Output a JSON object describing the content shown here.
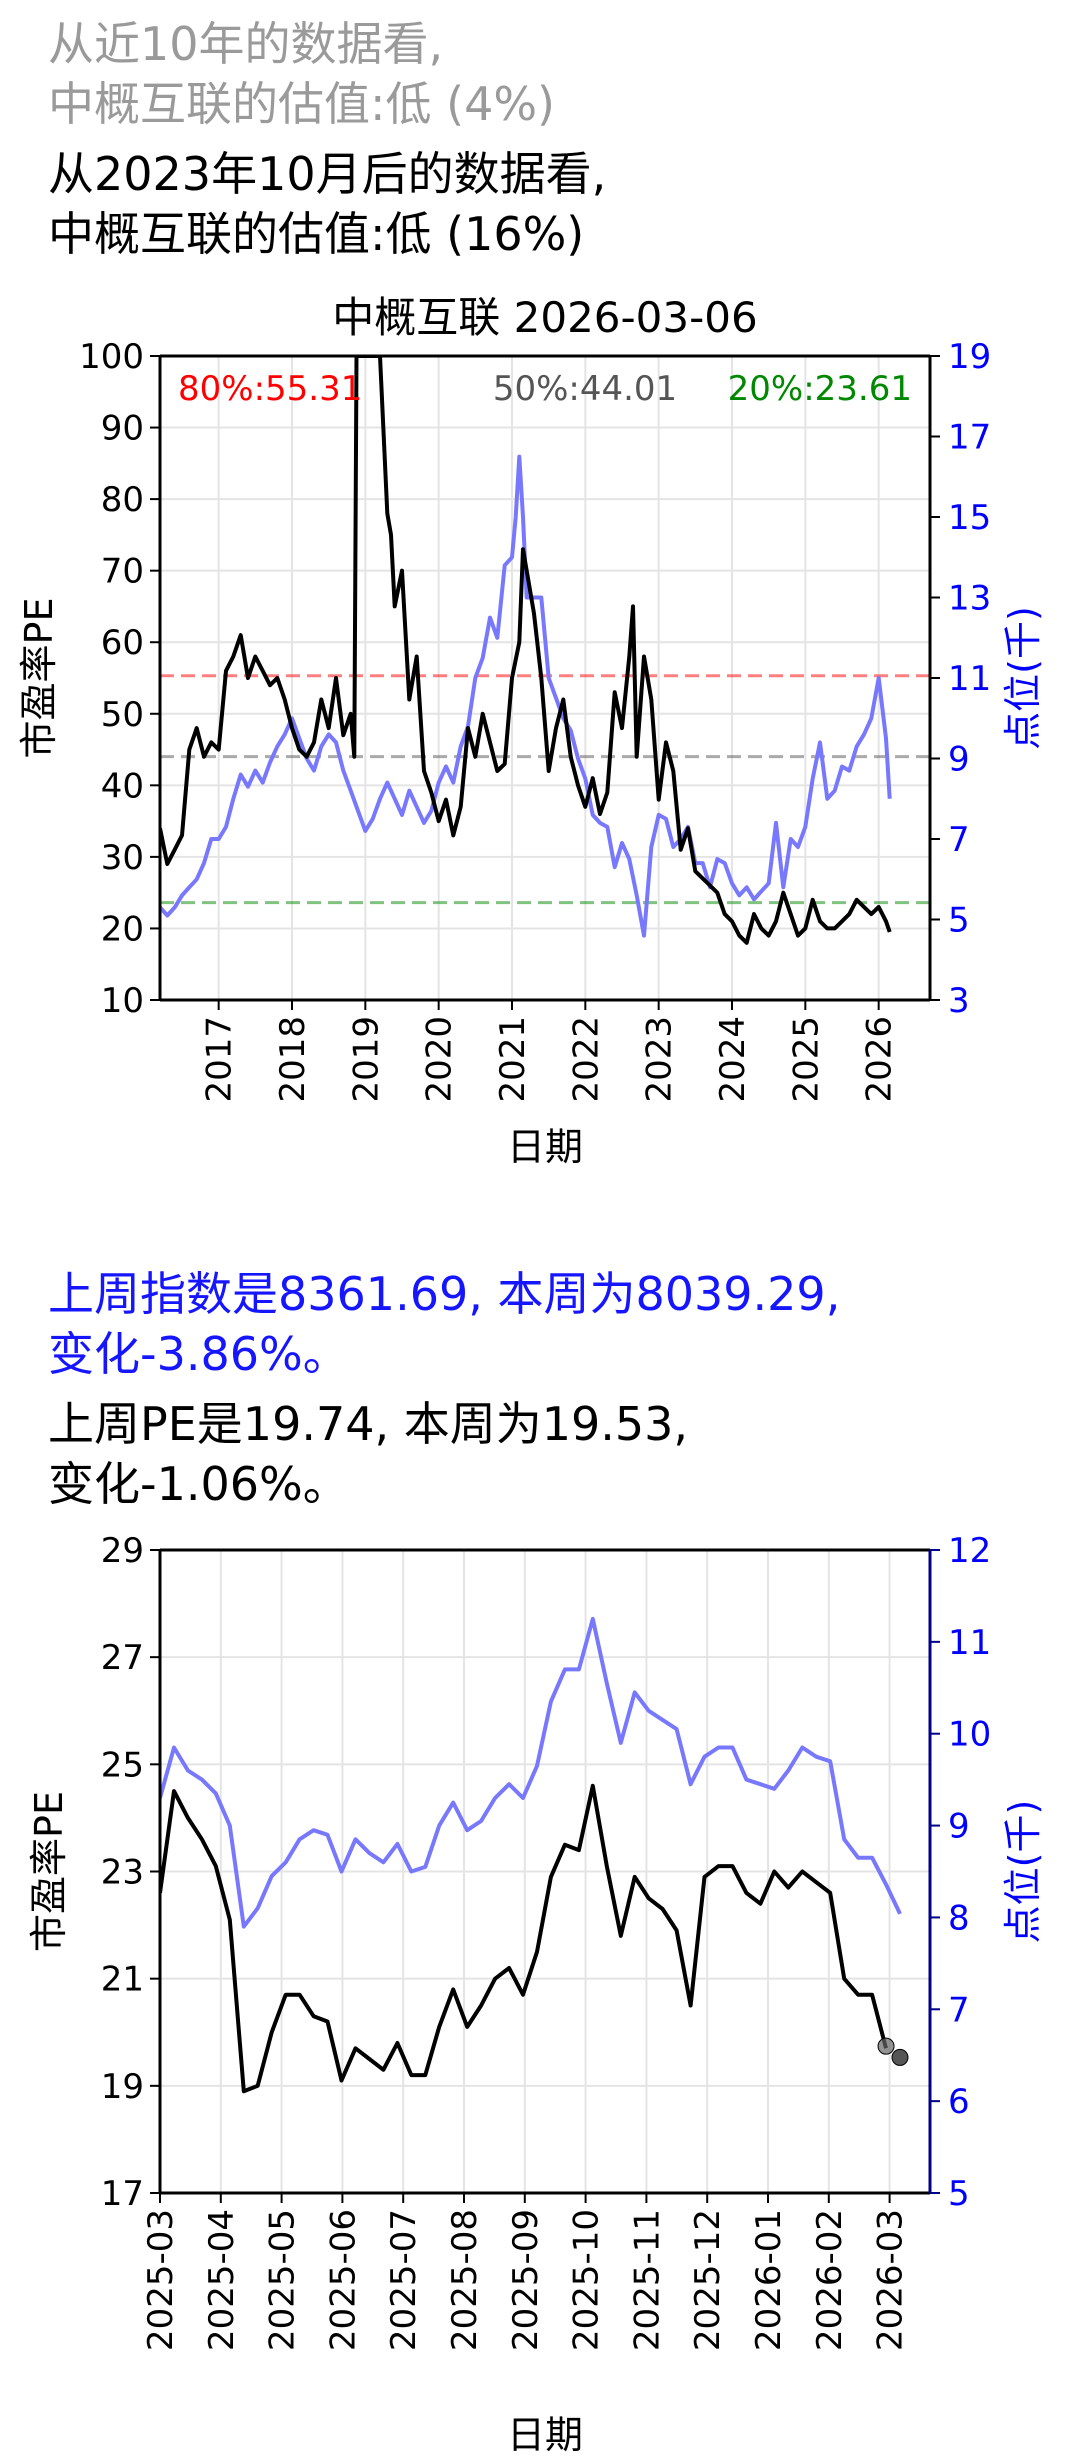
{
  "header": {
    "line1": "从近10年的数据看,",
    "line2": "中概互联的估值:低 (4%)",
    "line3": "从2023年10月后的数据看,",
    "line4": "中概互联的估值:低 (16%)"
  },
  "summary": {
    "index_line1": "上周指数是8361.69, 本周为8039.29,",
    "index_line2": "变化-3.86%。",
    "pe_line1": "上周PE是19.74, 本周为19.53,",
    "pe_line2": "变化-1.06%。"
  },
  "colors": {
    "pe": "#000000",
    "index": "#7878ff",
    "p80": "#ff0000",
    "p50": "#555555",
    "p20": "#008800",
    "right_axis": "#0000ff"
  },
  "chart_data": [
    {
      "type": "line",
      "title": "中概互联 2026-03-06",
      "xlabel": "日期",
      "ylabel": "市盈率PE",
      "y2label": "点位(千)",
      "xlim": [
        2016.2,
        2026.7
      ],
      "ylim": [
        10,
        100
      ],
      "y2lim": [
        3,
        19
      ],
      "x_ticks": [
        "2017",
        "2018",
        "2019",
        "2020",
        "2021",
        "2022",
        "2023",
        "2024",
        "2025",
        "2026"
      ],
      "y_ticks": [
        "10",
        "20",
        "30",
        "40",
        "50",
        "60",
        "70",
        "80",
        "90",
        "100"
      ],
      "y2_ticks": [
        "3",
        "5",
        "7",
        "9",
        "11",
        "13",
        "15",
        "17",
        "19"
      ],
      "grid": true,
      "percentile_lines": [
        {
          "label": "80%:55.31",
          "value": 55.31,
          "color": "#ff0000"
        },
        {
          "label": "50%:44.01",
          "value": 44.01,
          "color": "#555555"
        },
        {
          "label": "20%:23.61",
          "value": 23.61,
          "color": "#008800"
        }
      ],
      "series": [
        {
          "name": "市盈率PE",
          "axis": "left",
          "color": "#000000",
          "x": [
            2016.2,
            2016.3,
            2016.4,
            2016.5,
            2016.6,
            2016.7,
            2016.8,
            2016.9,
            2017.0,
            2017.1,
            2017.2,
            2017.3,
            2017.4,
            2017.5,
            2017.6,
            2017.7,
            2017.8,
            2017.9,
            2018.0,
            2018.1,
            2018.2,
            2018.3,
            2018.4,
            2018.5,
            2018.6,
            2018.7,
            2018.8,
            2018.85,
            2018.88,
            2018.92,
            2019.0,
            2019.1,
            2019.2,
            2019.3,
            2019.35,
            2019.4,
            2019.5,
            2019.6,
            2019.7,
            2019.8,
            2019.9,
            2020.0,
            2020.1,
            2020.2,
            2020.3,
            2020.4,
            2020.5,
            2020.6,
            2020.7,
            2020.8,
            2020.9,
            2021.0,
            2021.1,
            2021.15,
            2021.2,
            2021.3,
            2021.4,
            2021.5,
            2021.6,
            2021.7,
            2021.8,
            2021.9,
            2022.0,
            2022.1,
            2022.2,
            2022.3,
            2022.4,
            2022.5,
            2022.6,
            2022.65,
            2022.7,
            2022.8,
            2022.9,
            2023.0,
            2023.1,
            2023.2,
            2023.3,
            2023.4,
            2023.5,
            2023.6,
            2023.7,
            2023.8,
            2023.9,
            2024.0,
            2024.1,
            2024.2,
            2024.3,
            2024.4,
            2024.5,
            2024.6,
            2024.7,
            2024.8,
            2024.9,
            2025.0,
            2025.1,
            2025.2,
            2025.3,
            2025.4,
            2025.5,
            2025.6,
            2025.7,
            2025.8,
            2025.9,
            2026.0,
            2026.1,
            2026.15
          ],
          "y": [
            34,
            29,
            31,
            33,
            45,
            48,
            44,
            46,
            45,
            56,
            58,
            61,
            55,
            58,
            56,
            54,
            55,
            52,
            48,
            45,
            44,
            46,
            52,
            48,
            55,
            47,
            50,
            44,
            100,
            100,
            100,
            100,
            100,
            78,
            75,
            65,
            70,
            52,
            58,
            42,
            39,
            35,
            38,
            33,
            37,
            48,
            44,
            50,
            46,
            42,
            43,
            55,
            60,
            73,
            70,
            64,
            55,
            42,
            48,
            52,
            44,
            40,
            37,
            41,
            36,
            39,
            53,
            48,
            58,
            65,
            44,
            58,
            52,
            38,
            46,
            42,
            31,
            34,
            28,
            27,
            26,
            25,
            22,
            21,
            19,
            18,
            22,
            20,
            19,
            21,
            25,
            22,
            19,
            20,
            24,
            21,
            20,
            20,
            21,
            22,
            24,
            23,
            22,
            23,
            21,
            19.5
          ]
        },
        {
          "name": "点位(千)",
          "axis": "right",
          "color": "#7878ff",
          "x": [
            2016.2,
            2016.3,
            2016.4,
            2016.5,
            2016.6,
            2016.7,
            2016.8,
            2016.9,
            2017.0,
            2017.1,
            2017.2,
            2017.3,
            2017.4,
            2017.5,
            2017.6,
            2017.7,
            2017.8,
            2017.9,
            2018.0,
            2018.1,
            2018.2,
            2018.3,
            2018.4,
            2018.5,
            2018.6,
            2018.7,
            2018.8,
            2018.9,
            2019.0,
            2019.1,
            2019.2,
            2019.3,
            2019.4,
            2019.5,
            2019.6,
            2019.7,
            2019.8,
            2019.9,
            2020.0,
            2020.1,
            2020.2,
            2020.3,
            2020.4,
            2020.5,
            2020.6,
            2020.7,
            2020.8,
            2020.9,
            2021.0,
            2021.05,
            2021.1,
            2021.15,
            2021.2,
            2021.3,
            2021.4,
            2021.5,
            2021.6,
            2021.7,
            2021.8,
            2021.9,
            2022.0,
            2022.1,
            2022.2,
            2022.3,
            2022.4,
            2022.5,
            2022.6,
            2022.7,
            2022.8,
            2022.9,
            2023.0,
            2023.1,
            2023.2,
            2023.3,
            2023.4,
            2023.5,
            2023.6,
            2023.7,
            2023.8,
            2023.9,
            2024.0,
            2024.1,
            2024.2,
            2024.3,
            2024.4,
            2024.5,
            2024.6,
            2024.7,
            2024.8,
            2024.9,
            2025.0,
            2025.1,
            2025.2,
            2025.3,
            2025.4,
            2025.5,
            2025.6,
            2025.7,
            2025.8,
            2025.9,
            2026.0,
            2026.1,
            2026.15
          ],
          "y": [
            5.3,
            5.1,
            5.3,
            5.6,
            5.8,
            6.0,
            6.4,
            7.0,
            7.0,
            7.3,
            8.0,
            8.6,
            8.3,
            8.7,
            8.4,
            8.9,
            9.3,
            9.6,
            10.0,
            9.5,
            9.0,
            8.7,
            9.3,
            9.6,
            9.4,
            8.7,
            8.2,
            7.7,
            7.2,
            7.5,
            8.0,
            8.4,
            8.0,
            7.6,
            8.2,
            7.8,
            7.4,
            7.7,
            8.4,
            8.8,
            8.4,
            9.3,
            9.8,
            11.0,
            11.5,
            12.5,
            12.0,
            13.8,
            14.0,
            15.0,
            16.5,
            15.0,
            13.0,
            13.0,
            13.0,
            11.0,
            10.5,
            10.0,
            9.7,
            9.0,
            8.5,
            7.6,
            7.4,
            7.3,
            6.3,
            6.9,
            6.5,
            5.6,
            4.6,
            6.8,
            7.6,
            7.5,
            6.8,
            7.0,
            7.3,
            6.4,
            6.4,
            5.8,
            6.5,
            6.4,
            5.9,
            5.6,
            5.8,
            5.5,
            5.7,
            5.9,
            7.4,
            5.8,
            7.0,
            6.8,
            7.3,
            8.5,
            9.4,
            8.0,
            8.2,
            8.8,
            8.7,
            9.3,
            9.6,
            10.0,
            11.0,
            9.5,
            8.0
          ]
        }
      ]
    },
    {
      "type": "line",
      "title": "",
      "xlabel": "日期",
      "ylabel": "市盈率PE",
      "y2label": "点位(千)",
      "ylim": [
        17,
        29
      ],
      "y2lim": [
        5,
        12
      ],
      "x_ticks": [
        "2025-03",
        "2025-04",
        "2025-05",
        "2025-06",
        "2025-07",
        "2025-08",
        "2025-09",
        "2025-10",
        "2025-11",
        "2025-12",
        "2026-01",
        "2026-02",
        "2026-03"
      ],
      "y_ticks": [
        "17",
        "19",
        "21",
        "23",
        "25",
        "27",
        "29"
      ],
      "y2_ticks": [
        "5",
        "6",
        "7",
        "8",
        "9",
        "10",
        "11",
        "12"
      ],
      "grid": true,
      "series": [
        {
          "name": "市盈率PE",
          "axis": "left",
          "color": "#000000",
          "x": [
            0,
            1,
            2,
            3,
            4,
            5,
            6,
            7,
            8,
            9,
            10,
            11,
            12,
            13,
            14,
            15,
            16,
            17,
            18,
            19,
            20,
            21,
            22,
            23,
            24,
            25,
            26,
            27,
            28,
            29,
            30,
            31,
            32,
            33,
            34,
            35,
            36,
            37,
            38,
            39,
            40,
            41,
            42,
            43,
            44,
            45,
            46,
            47,
            48,
            49,
            50,
            51,
            52
          ],
          "y": [
            22.6,
            24.5,
            24.0,
            23.6,
            23.1,
            22.1,
            18.9,
            19.0,
            20.0,
            20.7,
            20.7,
            20.3,
            20.2,
            19.1,
            19.7,
            19.5,
            19.3,
            19.8,
            19.2,
            19.2,
            20.1,
            20.8,
            20.1,
            20.5,
            21.0,
            21.2,
            20.7,
            21.5,
            22.9,
            23.5,
            23.4,
            24.6,
            23.1,
            21.8,
            22.9,
            22.5,
            22.3,
            21.9,
            20.5,
            22.9,
            23.1,
            23.1,
            22.6,
            22.4,
            23.0,
            22.7,
            23.0,
            22.8,
            22.6,
            21.0,
            20.7,
            20.7,
            19.7
          ],
          "highlight": [
            {
              "x": 52,
              "y": 19.74
            },
            {
              "x": 53,
              "y": 19.53
            }
          ]
        },
        {
          "name": "点位(千)",
          "axis": "right",
          "color": "#7878ff",
          "x": [
            0,
            1,
            2,
            3,
            4,
            5,
            6,
            7,
            8,
            9,
            10,
            11,
            12,
            13,
            14,
            15,
            16,
            17,
            18,
            19,
            20,
            21,
            22,
            23,
            24,
            25,
            26,
            27,
            28,
            29,
            30,
            31,
            32,
            33,
            34,
            35,
            36,
            37,
            38,
            39,
            40,
            41,
            42,
            43,
            44,
            45,
            46,
            47,
            48,
            49,
            50,
            51,
            52,
            53
          ],
          "y": [
            9.3,
            9.85,
            9.6,
            9.5,
            9.35,
            9.0,
            7.9,
            8.1,
            8.45,
            8.6,
            8.85,
            8.95,
            8.9,
            8.5,
            8.85,
            8.7,
            8.6,
            8.8,
            8.5,
            8.55,
            9.0,
            9.25,
            8.95,
            9.05,
            9.3,
            9.45,
            9.3,
            9.65,
            10.35,
            10.7,
            10.7,
            11.25,
            10.55,
            9.9,
            10.45,
            10.25,
            10.15,
            10.05,
            9.45,
            9.75,
            9.85,
            9.85,
            9.5,
            9.45,
            9.4,
            9.6,
            9.85,
            9.75,
            9.7,
            8.85,
            8.65,
            8.65,
            8.36,
            8.04
          ]
        }
      ]
    }
  ]
}
